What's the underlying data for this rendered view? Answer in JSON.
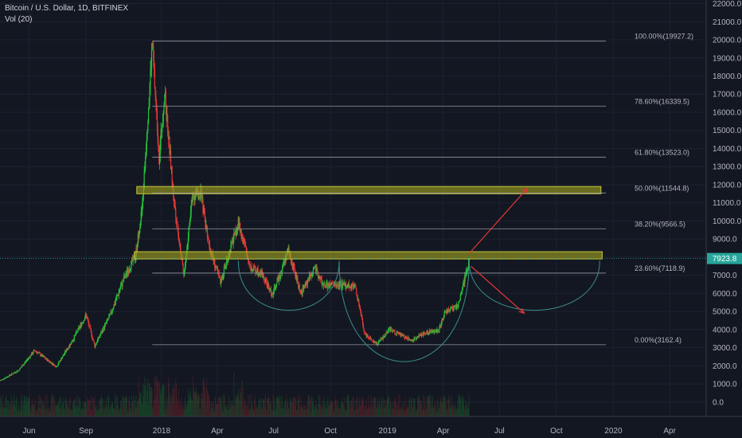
{
  "header": {
    "symbol": "Bitcoin / U.S. Dollar, 1D, BITFINEX",
    "indicator": "Vol (20)"
  },
  "colors": {
    "background": "#131722",
    "up": "#26c13b",
    "down": "#e53935",
    "zone": "#9a9a1e",
    "arrow": "#e53935",
    "arc": "#3a8f86",
    "price_tag": "#26a69a"
  },
  "chart_data": {
    "type": "candlestick",
    "ylim": [
      -800,
      22200
    ],
    "y_ticks": [
      0,
      1000,
      2000,
      3000,
      4000,
      5000,
      6000,
      7000,
      8000,
      9000,
      10000,
      11000,
      12000,
      13000,
      14000,
      15000,
      16000,
      17000,
      18000,
      19000,
      20000,
      21000,
      22000
    ],
    "y_tick_labels": [
      "0.0",
      "1000.0",
      "2000.0",
      "3000.0",
      "4000.0",
      "5000.0",
      "6000.0",
      "7000.0",
      "8000.0",
      "9000.0",
      "10000.0",
      "11000.0",
      "12000.0",
      "13000.0",
      "14000.0",
      "15000.0",
      "16000.0",
      "17000.0",
      "18000.0",
      "19000.0",
      "20000.0",
      "21000.0",
      "22000.0"
    ],
    "x_ticks": [
      "Jun",
      "Sep",
      "2018",
      "Apr",
      "Jul",
      "Oct",
      "2019",
      "Apr",
      "Jul",
      "Oct",
      "2020",
      "Apr"
    ],
    "x_range": [
      "2017-04-15",
      "2020-05-30"
    ],
    "x_tick_dates": [
      "2017-06-01",
      "2017-09-01",
      "2018-01-01",
      "2018-04-01",
      "2018-07-01",
      "2018-10-01",
      "2019-01-01",
      "2019-04-01",
      "2019-07-01",
      "2019-10-01",
      "2020-01-01",
      "2020-04-01"
    ],
    "last_price": 7923.8,
    "last_price_label": "7923.8",
    "price_path": [
      [
        "2017-04-15",
        1180
      ],
      [
        "2017-05-15",
        1750
      ],
      [
        "2017-06-10",
        2850
      ],
      [
        "2017-07-15",
        1950
      ],
      [
        "2017-08-10",
        3400
      ],
      [
        "2017-09-01",
        4800
      ],
      [
        "2017-09-15",
        3100
      ],
      [
        "2017-10-10",
        4800
      ],
      [
        "2017-11-01",
        6800
      ],
      [
        "2017-11-20",
        8100
      ],
      [
        "2017-12-01",
        10800
      ],
      [
        "2017-12-17",
        19800
      ],
      [
        "2017-12-28",
        13500
      ],
      [
        "2018-01-06",
        17100
      ],
      [
        "2018-01-20",
        11500
      ],
      [
        "2018-02-06",
        6900
      ],
      [
        "2018-02-20",
        11400
      ],
      [
        "2018-03-05",
        11500
      ],
      [
        "2018-03-20",
        8500
      ],
      [
        "2018-04-06",
        6600
      ],
      [
        "2018-05-05",
        9900
      ],
      [
        "2018-05-25",
        7400
      ],
      [
        "2018-06-10",
        7200
      ],
      [
        "2018-06-29",
        5900
      ],
      [
        "2018-07-25",
        8400
      ],
      [
        "2018-08-14",
        6000
      ],
      [
        "2018-09-05",
        7400
      ],
      [
        "2018-09-20",
        6400
      ],
      [
        "2018-10-20",
        6500
      ],
      [
        "2018-11-10",
        6400
      ],
      [
        "2018-11-25",
        3800
      ],
      [
        "2018-12-15",
        3200
      ],
      [
        "2019-01-05",
        4000
      ],
      [
        "2019-02-08",
        3400
      ],
      [
        "2019-03-01",
        3800
      ],
      [
        "2019-03-25",
        4000
      ],
      [
        "2019-04-05",
        5000
      ],
      [
        "2019-04-25",
        5300
      ],
      [
        "2019-05-13",
        7900
      ]
    ],
    "fibonacci": {
      "start": "2017-12-17",
      "end": "2019-12-20",
      "levels": [
        {
          "label": "100.00%(19927.2)",
          "price": 19927.2
        },
        {
          "label": "78.60%(16339.5)",
          "price": 16339.5
        },
        {
          "label": "61.80%(13523.0)",
          "price": 13523.0
        },
        {
          "label": "50.00%(11544.8)",
          "price": 11544.8
        },
        {
          "label": "38.20%(9566.5)",
          "price": 9566.5
        },
        {
          "label": "23.60%(7118.9)",
          "price": 7118.9
        },
        {
          "label": "0.00%(3162.4)",
          "price": 3162.4
        }
      ]
    },
    "zones": [
      {
        "start": "2017-11-22",
        "end": "2019-12-12",
        "from": 11500,
        "to": 11900
      },
      {
        "start": "2017-11-18",
        "end": "2019-12-14",
        "from": 7900,
        "to": 8300
      }
    ],
    "arcs": [
      {
        "start": "2018-05-05",
        "bottom": "2018-08-20",
        "end": "2018-10-15",
        "top": 7800,
        "low": 5100
      },
      {
        "start": "2018-10-15",
        "bottom": "2018-12-30",
        "end": "2019-05-13",
        "top": 7800,
        "low": 2300
      },
      {
        "start": "2019-05-13",
        "bottom": "2019-07-30",
        "end": "2019-12-10",
        "top": 7800,
        "low": 5100
      }
    ],
    "arrows": [
      {
        "from": [
          "2019-05-13",
          8200
        ],
        "to": [
          "2019-08-15",
          11800
        ]
      },
      {
        "from": [
          "2019-05-16",
          7500
        ],
        "to": [
          "2019-08-10",
          4900
        ]
      }
    ]
  }
}
